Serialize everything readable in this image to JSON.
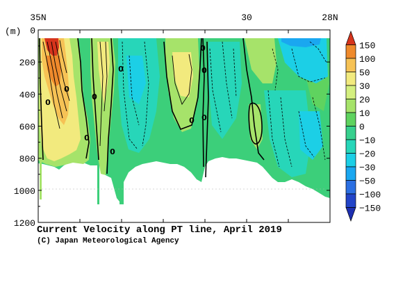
{
  "chart_data": {
    "type": "heatmap",
    "title": "Current Velocity along PT line, April 2019",
    "credit": "(C) Japan Meteorological Agency",
    "ylabel": "(m)",
    "x_ticks": [
      "35N",
      "30",
      "28N"
    ],
    "y_ticks": [
      "0",
      "200",
      "400",
      "600",
      "800",
      "1000",
      "1200"
    ],
    "ylim": [
      0,
      1200
    ],
    "colorbar": {
      "labels": [
        "150",
        "100",
        "50",
        "30",
        "20",
        "10",
        "0",
        "−10",
        "−20",
        "−30",
        "−50",
        "−100",
        "−150"
      ],
      "colors": [
        "#d6341c",
        "#ef8a2c",
        "#f6c255",
        "#f2ea7e",
        "#d4ef7f",
        "#a6e36a",
        "#5fd35f",
        "#37d08e",
        "#27d6b9",
        "#1ccfe6",
        "#1aa7f0",
        "#2b6fe2",
        "#2244c8",
        "#1d2fb0"
      ]
    },
    "contour_labels": [
      "0",
      "0",
      "0",
      "0",
      "0",
      "0",
      "0",
      "0",
      "0"
    ]
  }
}
